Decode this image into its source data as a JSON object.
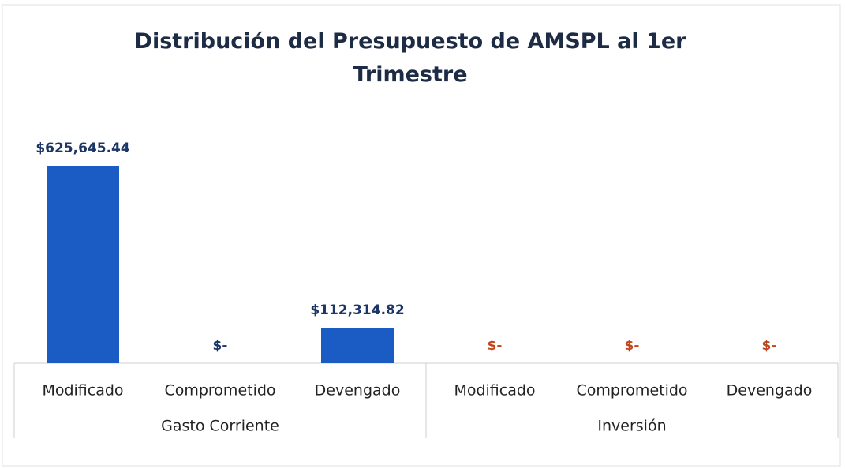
{
  "chart_data": {
    "type": "bar",
    "title": "Distribución del Presupuesto de AMSPL al 1er Trimestre",
    "color": "#1a5cc4",
    "groups": [
      {
        "name": "Gasto Corriente",
        "categories": [
          "Modificado",
          "Comprometido",
          "Devengado"
        ],
        "values": [
          625645.44,
          0,
          112314.82
        ],
        "value_labels": [
          "$625,645.44",
          "$-",
          "$112,314.82"
        ],
        "label_color": "#1b3566"
      },
      {
        "name": "Inversión",
        "categories": [
          "Modificado",
          "Comprometido",
          "Devengado"
        ],
        "values": [
          0,
          0,
          0
        ],
        "value_labels": [
          "$-",
          "$-",
          "$-"
        ],
        "label_color": "#c0461e"
      }
    ]
  }
}
